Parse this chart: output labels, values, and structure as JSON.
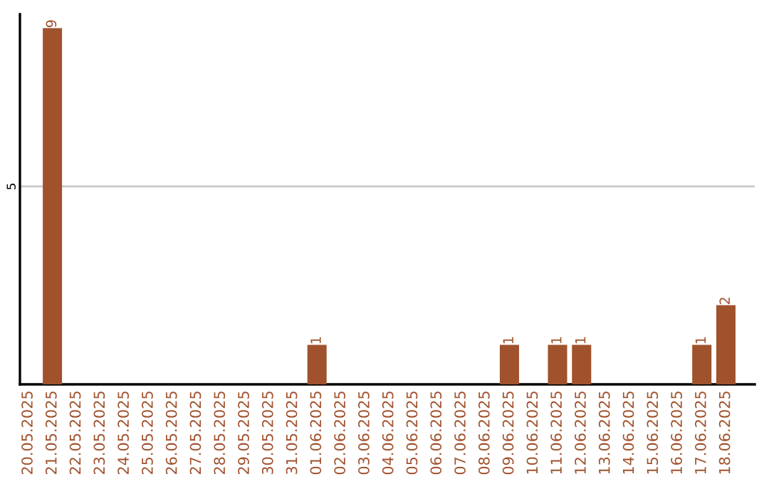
{
  "chart_data": {
    "type": "bar",
    "categories": [
      "20.05.2025",
      "21.05.2025",
      "22.05.2025",
      "23.05.2025",
      "24.05.2025",
      "25.05.2025",
      "26.05.2025",
      "27.05.2025",
      "28.05.2025",
      "29.05.2025",
      "30.05.2025",
      "31.05.2025",
      "01.06.2025",
      "02.06.2025",
      "03.06.2025",
      "04.06.2025",
      "05.06.2025",
      "06.06.2025",
      "07.06.2025",
      "08.06.2025",
      "09.06.2025",
      "10.06.2025",
      "11.06.2025",
      "12.06.2025",
      "13.06.2025",
      "14.06.2025",
      "15.06.2025",
      "16.06.2025",
      "17.06.2025",
      "18.06.2025"
    ],
    "values": [
      0,
      9,
      0,
      0,
      0,
      0,
      0,
      0,
      0,
      0,
      0,
      0,
      1,
      0,
      0,
      0,
      0,
      0,
      0,
      0,
      1,
      0,
      1,
      1,
      0,
      0,
      0,
      0,
      1,
      2
    ],
    "value_labels": [
      null,
      "9",
      null,
      null,
      null,
      null,
      null,
      null,
      null,
      null,
      null,
      null,
      "1",
      null,
      null,
      null,
      null,
      null,
      null,
      null,
      "1",
      null,
      "1",
      "1",
      null,
      null,
      null,
      null,
      "1",
      "2"
    ],
    "color": "#a0522d",
    "ylim": [
      0,
      9.35
    ],
    "yticks": [
      5
    ],
    "grid": "y"
  }
}
